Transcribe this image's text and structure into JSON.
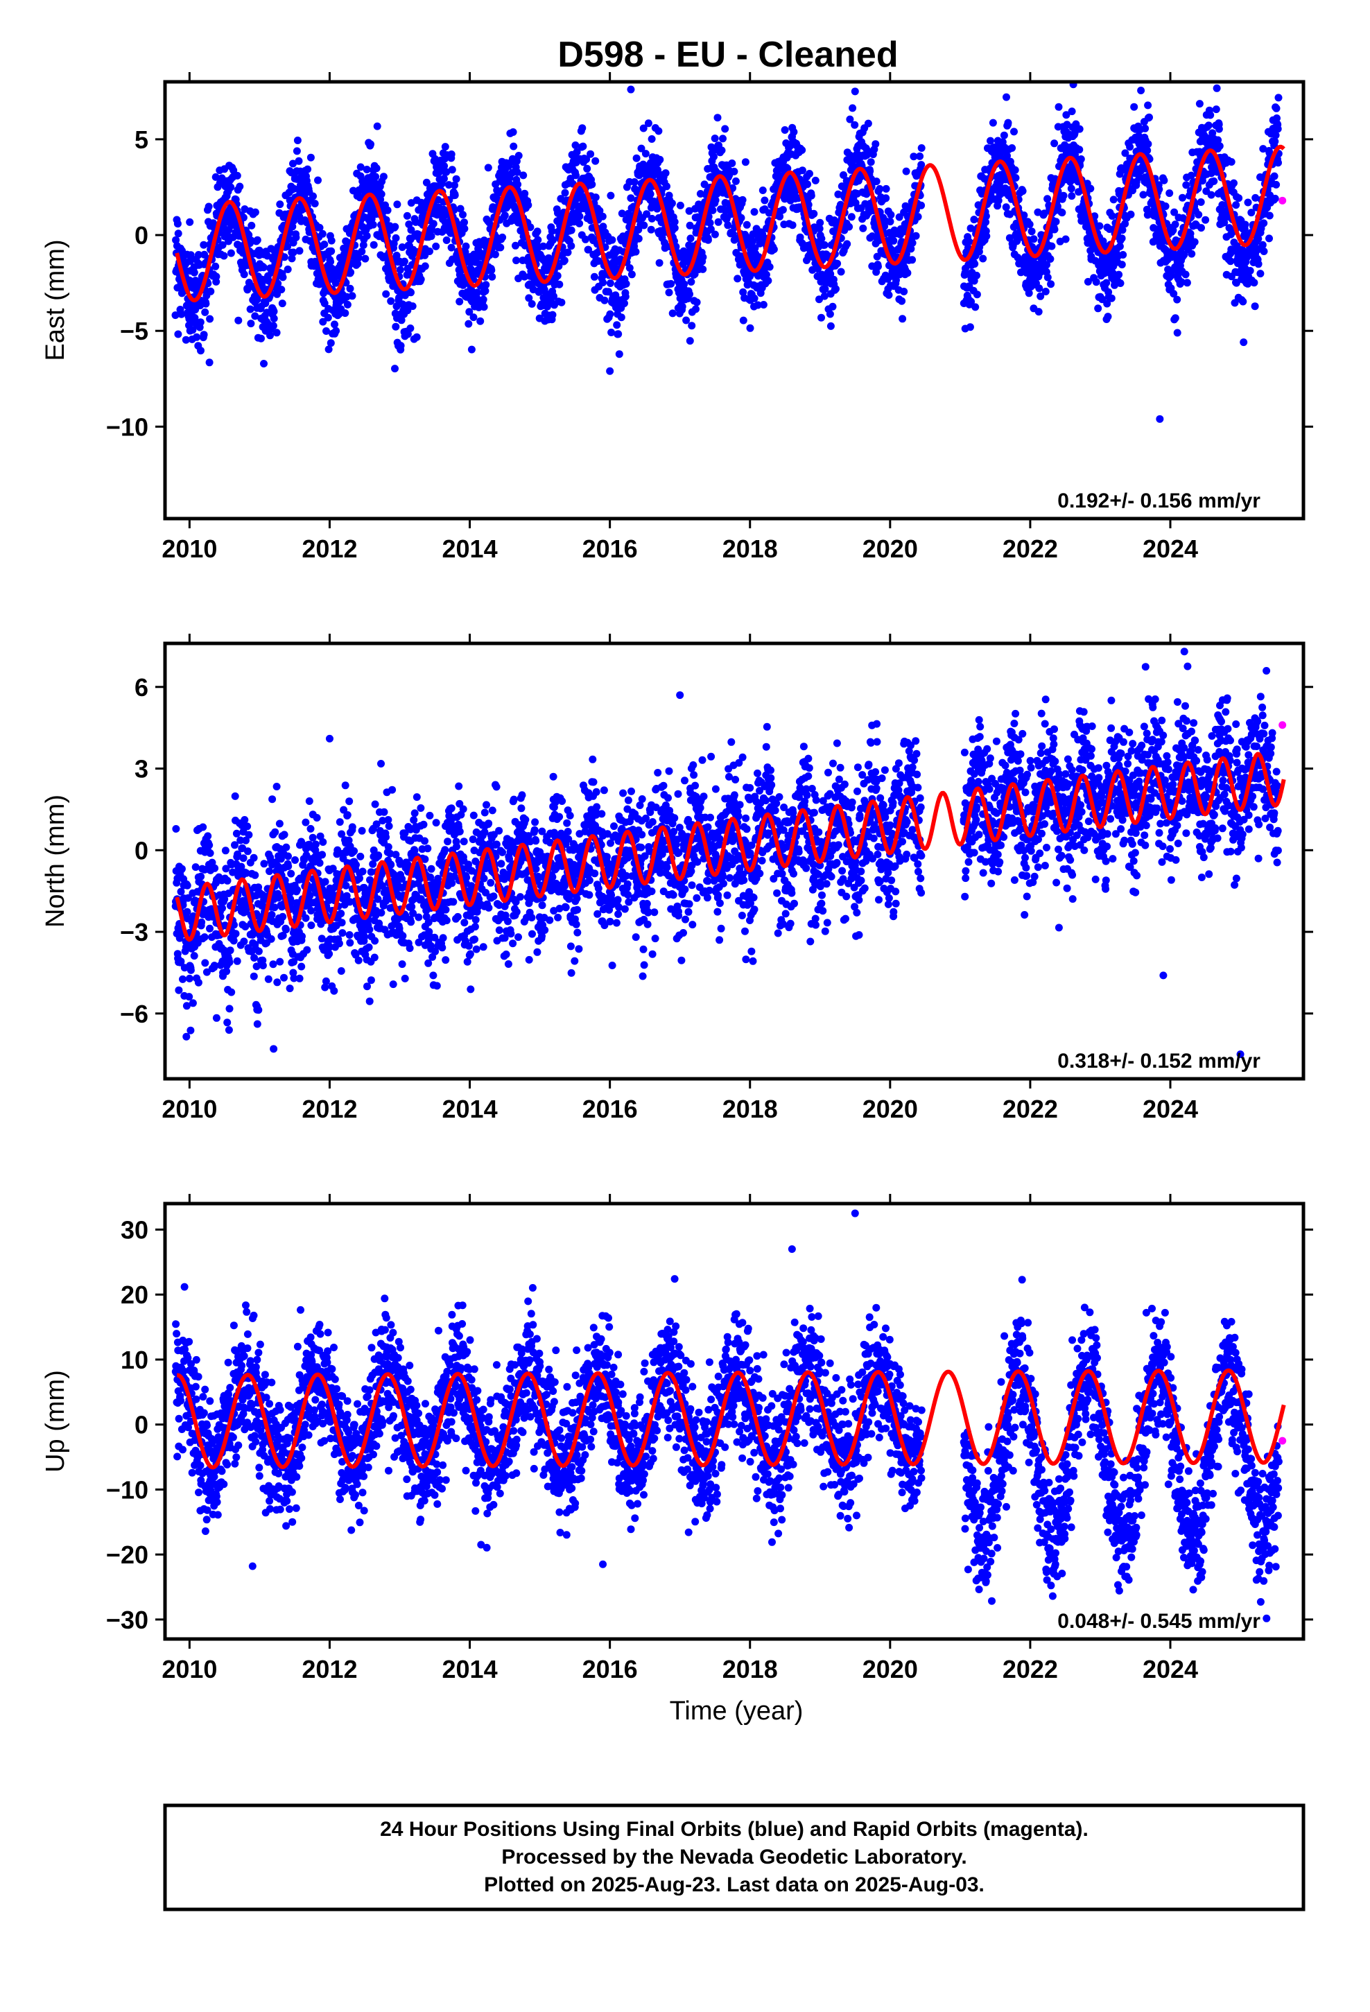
{
  "title": "D598  - EU - Cleaned",
  "xlabel": "Time (year)",
  "footer": {
    "line1": "24 Hour Positions Using Final Orbits (blue) and Rapid Orbits (magenta).",
    "line2": "Processed by the Nevada Geodetic Laboratory.",
    "line3": "Plotted on 2025-Aug-23. Last data on 2025-Aug-03."
  },
  "colors": {
    "final": "#0000ff",
    "rapid": "#ff00ff",
    "model": "#ff0000"
  },
  "chart_data": [
    {
      "type": "scatter",
      "component": "east",
      "ylabel": "East (mm)",
      "rate_text": "0.192+/- 0.156 mm/yr",
      "xlim": [
        2009.65,
        2025.9
      ],
      "ylim": [
        -14.8,
        8.0
      ],
      "xticks": [
        2010,
        2012,
        2014,
        2016,
        2018,
        2020,
        2022,
        2024
      ],
      "yticks": [
        5,
        0,
        -5,
        -10
      ],
      "model": {
        "a": -0.9,
        "rate": 0.192,
        "b": -2.96,
        "amp_start": 2.8,
        "amp_end": 2.8,
        "period": 1.0,
        "phase": 2010.07
      },
      "scatter": {
        "noise_sd": 1.3,
        "count": 4200,
        "gaps": [
          [
            2020.45,
            2021.05
          ]
        ],
        "shift_after_2021": -0.8
      },
      "final_orbit_range": [
        2009.8,
        2025.55
      ],
      "outliers": [
        {
          "x": 2016.0,
          "y": -7.1
        },
        {
          "x": 2023.85,
          "y": -9.6
        },
        {
          "x": 2016.3,
          "y": 7.6
        },
        {
          "x": 2019.5,
          "y": 7.5
        }
      ],
      "rapid_points": [
        {
          "x": 2025.6,
          "y": 1.8
        }
      ]
    },
    {
      "type": "scatter",
      "component": "north",
      "ylabel": "North (mm)",
      "rate_text": "0.318+/- 0.152 mm/yr",
      "xlim": [
        2009.65,
        2025.9
      ],
      "ylim": [
        -8.4,
        7.6
      ],
      "xticks": [
        2010,
        2012,
        2014,
        2016,
        2018,
        2020,
        2022,
        2024
      ],
      "yticks": [
        6,
        3,
        0,
        -3,
        -6
      ],
      "model": {
        "a": -2.3,
        "rate": 0.318,
        "b": -2.96,
        "amp_start": 1.1,
        "amp_end": 1.1,
        "period": 0.5,
        "phase": 2010.0
      },
      "scatter": {
        "noise_sd": 1.25,
        "count": 4200,
        "gaps": [
          [
            2020.45,
            2021.05
          ]
        ],
        "shift_after_2021": 0.3
      },
      "final_orbit_range": [
        2009.8,
        2025.55
      ],
      "outliers": [
        {
          "x": 2011.2,
          "y": -7.3
        },
        {
          "x": 2023.9,
          "y": -4.6
        },
        {
          "x": 2025.0,
          "y": -7.5
        },
        {
          "x": 2024.2,
          "y": 7.3
        },
        {
          "x": 2012.0,
          "y": 4.1
        },
        {
          "x": 2017.0,
          "y": 5.7
        }
      ],
      "rapid_points": [
        {
          "x": 2025.6,
          "y": 4.6
        }
      ]
    },
    {
      "type": "scatter",
      "component": "up",
      "ylabel": "Up (mm)",
      "rate_text": "0.048+/- 0.545 mm/yr",
      "xlim": [
        2009.65,
        2025.9
      ],
      "ylim": [
        -33.0,
        34.0
      ],
      "xticks": [
        2010,
        2012,
        2014,
        2016,
        2018,
        2020,
        2022,
        2024
      ],
      "yticks": [
        30,
        20,
        10,
        0,
        -10,
        -20,
        -30
      ],
      "model": {
        "a": 0.5,
        "rate": 0.048,
        "b": -2.96,
        "amp_start": 7.9,
        "amp_end": 7.9,
        "period": 1.0,
        "phase": 2010.33
      },
      "scatter": {
        "noise_sd": 4.8,
        "count": 4200,
        "gaps": [
          [
            2020.45,
            2021.05
          ]
        ],
        "shift_after_2021": -11.0
      },
      "final_orbit_range": [
        2009.8,
        2025.55
      ],
      "outliers": [
        {
          "x": 2010.9,
          "y": -21.8
        },
        {
          "x": 2015.9,
          "y": -21.5
        },
        {
          "x": 2019.5,
          "y": 32.5
        },
        {
          "x": 2018.6,
          "y": 27.0
        },
        {
          "x": 2022.6,
          "y": 13.0
        }
      ],
      "rapid_points": [
        {
          "x": 2025.6,
          "y": -2.5
        }
      ]
    }
  ]
}
